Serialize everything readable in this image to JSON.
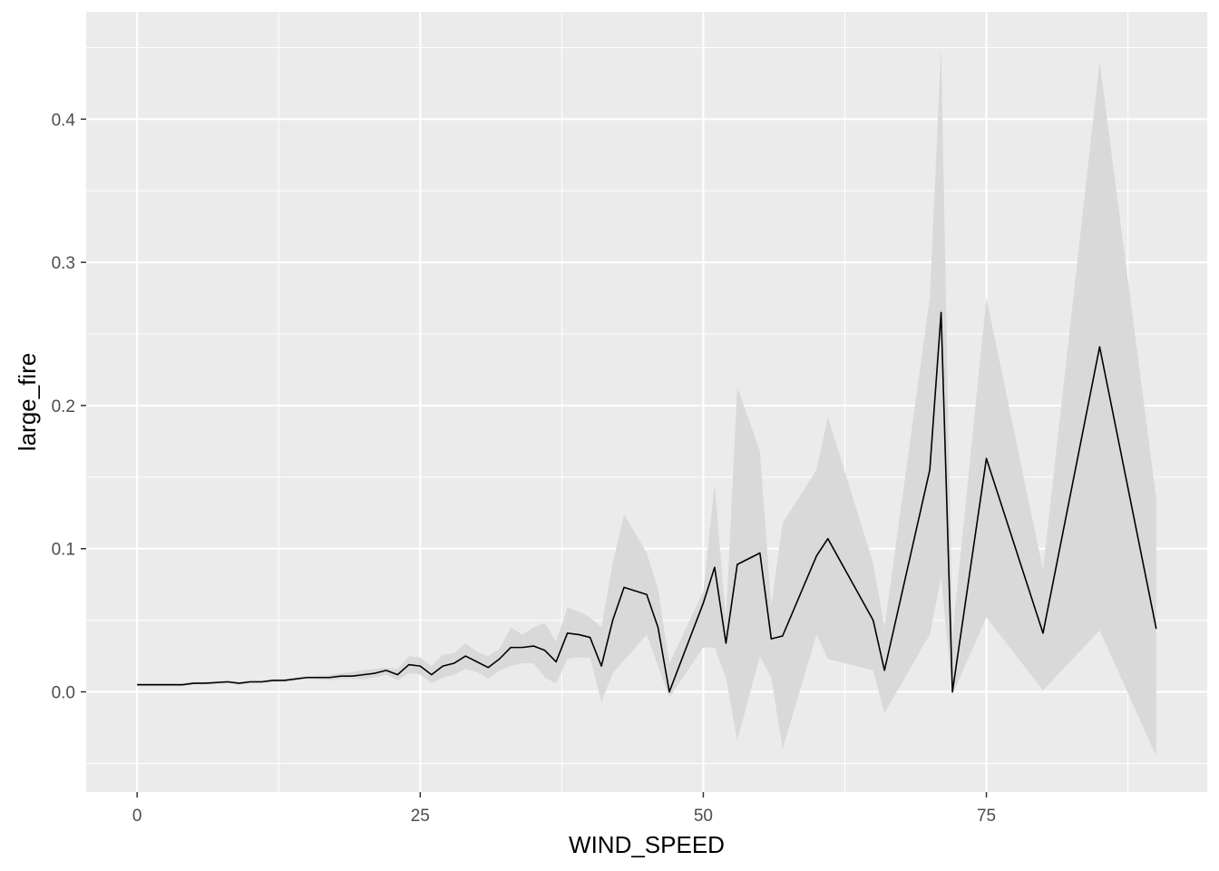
{
  "chart_data": {
    "type": "line",
    "title": "",
    "xlabel": "WIND_SPEED",
    "ylabel": "large_fire",
    "xlim": [
      -4.5,
      94.5
    ],
    "ylim": [
      -0.07,
      0.475
    ],
    "x_ticks": [
      0,
      25,
      50,
      75
    ],
    "x_tick_labels": [
      "0",
      "25",
      "50",
      "75"
    ],
    "y_ticks": [
      0.0,
      0.1,
      0.2,
      0.3,
      0.4
    ],
    "y_tick_labels": [
      "0.0",
      "0.1",
      "0.2",
      "0.3",
      "0.4"
    ],
    "grid": true,
    "legend": "none",
    "colors": {
      "panel": "#ebebeb",
      "grid": "#ffffff",
      "ribbon": "#d9d9d9",
      "line": "#000000"
    },
    "series": [
      {
        "x": [
          0,
          4,
          5,
          6,
          8,
          9,
          10,
          11,
          12,
          13,
          14,
          15,
          17,
          18,
          19,
          20,
          21,
          22,
          23,
          24,
          25,
          26,
          27,
          28,
          29,
          30,
          31,
          32,
          33,
          34,
          35,
          36,
          37,
          38,
          39,
          40,
          41,
          42,
          43,
          45,
          46,
          47,
          50,
          51,
          52,
          53,
          55,
          56,
          57,
          60,
          61,
          65,
          66,
          70,
          71,
          72,
          75,
          80,
          85,
          90
        ],
        "y": [
          0.005,
          0.005,
          0.006,
          0.006,
          0.007,
          0.006,
          0.007,
          0.007,
          0.008,
          0.008,
          0.009,
          0.01,
          0.01,
          0.011,
          0.011,
          0.012,
          0.013,
          0.015,
          0.012,
          0.019,
          0.018,
          0.012,
          0.018,
          0.02,
          0.025,
          0.021,
          0.017,
          0.023,
          0.031,
          0.031,
          0.032,
          0.029,
          0.021,
          0.041,
          0.04,
          0.038,
          0.018,
          0.05,
          0.073,
          0.068,
          0.045,
          0.0,
          0.062,
          0.087,
          0.034,
          0.089,
          0.097,
          0.037,
          0.039,
          0.095,
          0.107,
          0.05,
          0.015,
          0.155,
          0.265,
          0.0,
          0.163,
          0.041,
          0.241,
          0.044
        ],
        "upper": [
          0.006,
          0.006,
          0.007,
          0.007,
          0.008,
          0.007,
          0.008,
          0.008,
          0.009,
          0.009,
          0.01,
          0.011,
          0.012,
          0.013,
          0.014,
          0.015,
          0.016,
          0.017,
          0.016,
          0.025,
          0.024,
          0.018,
          0.026,
          0.027,
          0.034,
          0.028,
          0.025,
          0.03,
          0.045,
          0.04,
          0.045,
          0.048,
          0.035,
          0.059,
          0.056,
          0.052,
          0.045,
          0.09,
          0.124,
          0.097,
          0.072,
          0.02,
          0.07,
          0.145,
          0.05,
          0.213,
          0.168,
          0.06,
          0.118,
          0.155,
          0.192,
          0.09,
          0.045,
          0.275,
          0.45,
          0.04,
          0.275,
          0.085,
          0.44,
          0.135
        ],
        "lower": [
          0.004,
          0.004,
          0.005,
          0.005,
          0.006,
          0.005,
          0.006,
          0.006,
          0.007,
          0.007,
          0.008,
          0.009,
          0.008,
          0.009,
          0.009,
          0.009,
          0.01,
          0.012,
          0.008,
          0.013,
          0.012,
          0.006,
          0.01,
          0.012,
          0.016,
          0.014,
          0.009,
          0.015,
          0.018,
          0.02,
          0.02,
          0.01,
          0.006,
          0.023,
          0.024,
          0.024,
          -0.007,
          0.013,
          0.022,
          0.04,
          0.018,
          -0.004,
          0.031,
          0.031,
          0.01,
          -0.034,
          0.025,
          0.01,
          -0.04,
          0.04,
          0.023,
          0.015,
          -0.015,
          0.04,
          0.08,
          -0.002,
          0.052,
          0.001,
          0.043,
          -0.045
        ]
      }
    ]
  }
}
